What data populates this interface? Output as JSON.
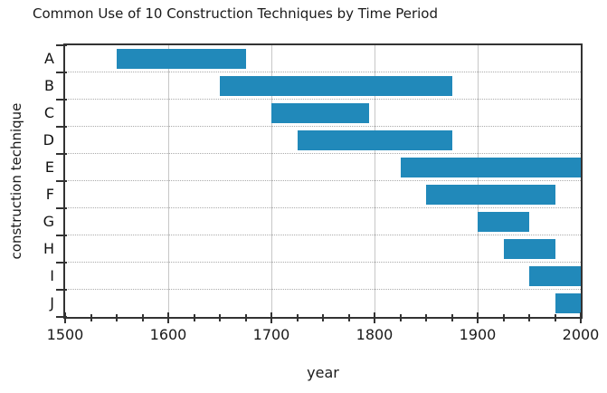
{
  "chart_data": {
    "type": "bar",
    "subtype": "horizontal-range-gantt",
    "title": "Common Use of 10 Construction Techniques by Time Period",
    "xlabel": "year",
    "ylabel": "construction technique",
    "xlim": [
      1500,
      2000
    ],
    "x_major_ticks": [
      1500,
      1600,
      1700,
      1800,
      1900,
      2000
    ],
    "x_minor_tick_step": 25,
    "grid": {
      "vertical_solid_at_major_ticks": true,
      "horizontal_dotted_between_rows": true
    },
    "legend": "none",
    "bar_color": "#2189ba",
    "axis_color": "#333333",
    "categories": [
      "A",
      "B",
      "C",
      "D",
      "E",
      "F",
      "G",
      "H",
      "I",
      "J"
    ],
    "ranges": [
      {
        "technique": "A",
        "start": 1550,
        "end": 1675
      },
      {
        "technique": "B",
        "start": 1650,
        "end": 1875
      },
      {
        "technique": "C",
        "start": 1700,
        "end": 1795
      },
      {
        "technique": "D",
        "start": 1725,
        "end": 1875
      },
      {
        "technique": "E",
        "start": 1825,
        "end": 2000
      },
      {
        "technique": "F",
        "start": 1850,
        "end": 1975
      },
      {
        "technique": "G",
        "start": 1900,
        "end": 1950
      },
      {
        "technique": "H",
        "start": 1925,
        "end": 1975
      },
      {
        "technique": "I",
        "start": 1950,
        "end": 2000
      },
      {
        "technique": "J",
        "start": 1975,
        "end": 2000
      }
    ]
  }
}
